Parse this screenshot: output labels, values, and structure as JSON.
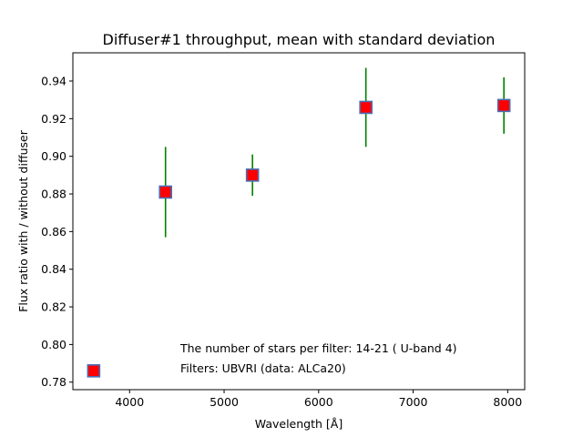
{
  "chart_data": {
    "type": "scatter",
    "title": "Diffuser#1 throughput, mean with standard deviation",
    "xlabel": "Wavelength [Å]",
    "ylabel": "Flux ratio with / without diffuser",
    "xlim": [
      3400,
      8180
    ],
    "ylim": [
      0.776,
      0.955
    ],
    "xticks": [
      4000,
      5000,
      6000,
      7000,
      8000
    ],
    "yticks": [
      0.78,
      0.8,
      0.82,
      0.84,
      0.86,
      0.88,
      0.9,
      0.92,
      0.94
    ],
    "points": [
      {
        "x": 3620,
        "y": 0.786,
        "err": 0.0
      },
      {
        "x": 4380,
        "y": 0.881,
        "err": 0.024
      },
      {
        "x": 5300,
        "y": 0.89,
        "err": 0.011
      },
      {
        "x": 6500,
        "y": 0.926,
        "err": 0.021
      },
      {
        "x": 7960,
        "y": 0.927,
        "err": 0.015
      }
    ],
    "marker_color": "#ff0000",
    "marker_edge_color": "#4a6fb5",
    "errorbar_color": "#008000",
    "annotations": [
      "The number of stars per filter: 14-21 ( U-band 4)",
      "Filters: UBVRI (data: ALCa20)"
    ]
  }
}
